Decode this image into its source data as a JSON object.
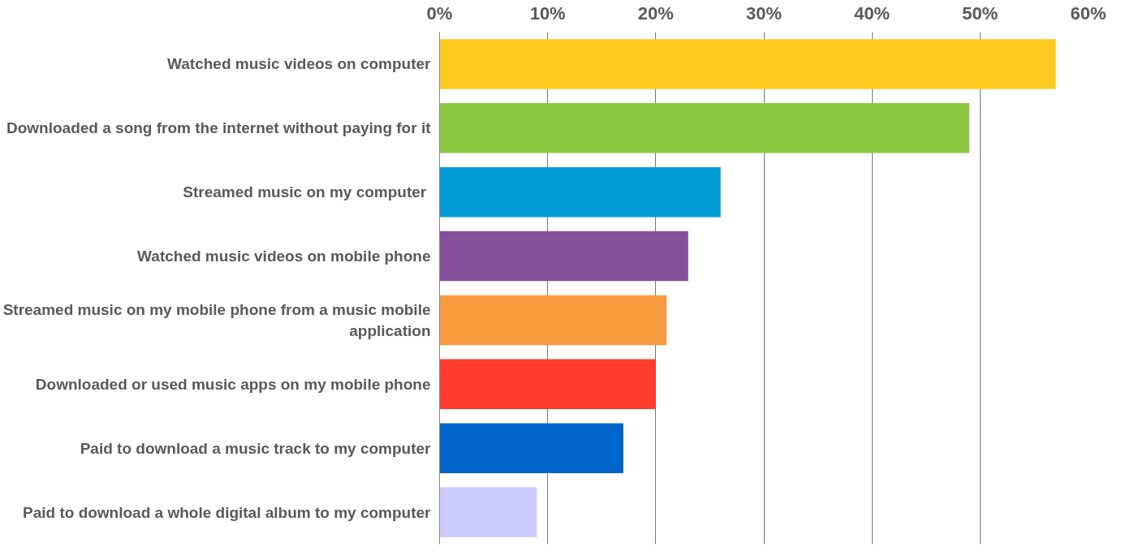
{
  "chart_data": {
    "type": "bar",
    "orientation": "horizontal",
    "categories": [
      "Watched music videos on computer",
      "Downloaded a song from the internet without paying for it",
      "Streamed music on my computer ",
      "Watched music videos on mobile phone",
      "Streamed music on my mobile phone from a music mobile\napplication",
      "Downloaded or used music apps on my mobile phone",
      "Paid to download a music track to my computer",
      "Paid to download a whole digital album to my computer"
    ],
    "values": [
      0.57,
      0.49,
      0.26,
      0.23,
      0.21,
      0.2,
      0.17,
      0.09
    ],
    "colors": [
      "#fdcb1f",
      "#8dc63f",
      "#009cd8",
      "#874f9b",
      "#f7993d",
      "#ff3c2e",
      "#0064cd",
      "#cccafe"
    ],
    "xlim": [
      0,
      0.6
    ],
    "xticks": [
      {
        "value": 0,
        "label": "0%"
      },
      {
        "value": 0.1,
        "label": "10%"
      },
      {
        "value": 0.2,
        "label": "20%"
      },
      {
        "value": 0.3,
        "label": "30%"
      },
      {
        "value": 0.4,
        "label": "40%"
      },
      {
        "value": 0.5,
        "label": "50%"
      },
      {
        "value": 0.6,
        "label": "60%"
      }
    ],
    "grid": "x"
  }
}
